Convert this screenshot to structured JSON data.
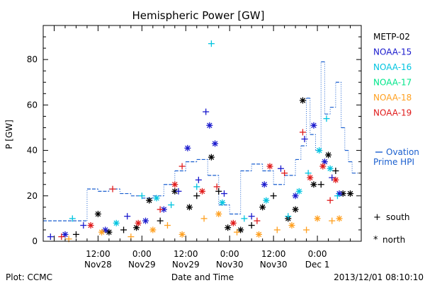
{
  "chart_data": {
    "type": "scatter",
    "title": "Hemispheric Power [GW]",
    "ylabel": "P [GW]",
    "xlabel": "Date and Time",
    "ylim": [
      0,
      95
    ],
    "yticks": [
      0,
      20,
      40,
      60,
      80
    ],
    "xlim": [
      "2013-11-27T21:00",
      "2013-12-01T12:00"
    ],
    "xticks": [
      {
        "at": "2013-11-28T12:00",
        "line1": "12:00",
        "line2": "Nov28"
      },
      {
        "at": "2013-11-29T00:00",
        "line1": "0:00",
        "line2": "Nov29"
      },
      {
        "at": "2013-11-29T12:00",
        "line1": "12:00",
        "line2": "Nov29"
      },
      {
        "at": "2013-11-30T00:00",
        "line1": "0:00",
        "line2": "Nov30"
      },
      {
        "at": "2013-11-30T12:00",
        "line1": "12:00",
        "line2": "Nov30"
      },
      {
        "at": "2013-12-01T00:00",
        "line1": "0:00",
        "line2": "Dec 1"
      }
    ],
    "grid": false,
    "legend_position": "right",
    "marker_legend": {
      "south_symbol": "+",
      "south_label": "south",
      "north_symbol": "*",
      "north_label": "north"
    },
    "series": [
      {
        "name": "METP-02",
        "color": "#000000",
        "points": [
          [
            "2013-11-28T06:00",
            3,
            "s"
          ],
          [
            "2013-11-28T12:00",
            12,
            "n"
          ],
          [
            "2013-11-28T15:00",
            4,
            "n"
          ],
          [
            "2013-11-28T19:00",
            5,
            "s"
          ],
          [
            "2013-11-28T22:30",
            6,
            "n"
          ],
          [
            "2013-11-29T02:00",
            18,
            "n"
          ],
          [
            "2013-11-29T05:00",
            9,
            "s"
          ],
          [
            "2013-11-29T09:00",
            22,
            "n"
          ],
          [
            "2013-11-29T13:00",
            15,
            "n"
          ],
          [
            "2013-11-29T15:00",
            20,
            "s"
          ],
          [
            "2013-11-29T19:00",
            37,
            "n"
          ],
          [
            "2013-11-29T21:00",
            22,
            "s"
          ],
          [
            "2013-11-29T23:30",
            6,
            "n"
          ],
          [
            "2013-11-30T03:00",
            5,
            "n"
          ],
          [
            "2013-11-30T06:00",
            7,
            "s"
          ],
          [
            "2013-11-30T09:00",
            15,
            "n"
          ],
          [
            "2013-11-30T12:00",
            20,
            "s"
          ],
          [
            "2013-11-30T16:00",
            10,
            "n"
          ],
          [
            "2013-11-30T18:00",
            14,
            "n"
          ],
          [
            "2013-11-30T20:00",
            62,
            "n"
          ],
          [
            "2013-11-30T23:00",
            25,
            "n"
          ],
          [
            "2013-12-01T01:00",
            25,
            "s"
          ],
          [
            "2013-12-01T03:00",
            38,
            "n"
          ],
          [
            "2013-12-01T05:00",
            31,
            "s"
          ],
          [
            "2013-12-01T07:00",
            21,
            "n"
          ],
          [
            "2013-12-01T09:00",
            21,
            "n"
          ]
        ]
      },
      {
        "name": "NOAA-15",
        "color": "#1a1acd",
        "points": [
          [
            "2013-11-27T23:00",
            2,
            "s"
          ],
          [
            "2013-11-28T03:00",
            3,
            "n"
          ],
          [
            "2013-11-28T08:00",
            7,
            "s"
          ],
          [
            "2013-11-28T14:00",
            5,
            "n"
          ],
          [
            "2013-11-28T20:00",
            11,
            "s"
          ],
          [
            "2013-11-29T01:00",
            9,
            "n"
          ],
          [
            "2013-11-29T06:00",
            14,
            "n"
          ],
          [
            "2013-11-29T10:00",
            22,
            "s"
          ],
          [
            "2013-11-29T12:30",
            41,
            "n"
          ],
          [
            "2013-11-29T15:30",
            27,
            "s"
          ],
          [
            "2013-11-29T17:30",
            57,
            "s"
          ],
          [
            "2013-11-29T18:30",
            51,
            "n"
          ],
          [
            "2013-11-29T20:00",
            43,
            "n"
          ],
          [
            "2013-11-29T22:30",
            21,
            "s"
          ],
          [
            "2013-11-30T06:00",
            11,
            "s"
          ],
          [
            "2013-11-30T09:30",
            25,
            "n"
          ],
          [
            "2013-11-30T14:00",
            32,
            "s"
          ],
          [
            "2013-11-30T18:00",
            20,
            "n"
          ],
          [
            "2013-11-30T20:30",
            45,
            "s"
          ],
          [
            "2013-11-30T23:00",
            51,
            "n"
          ],
          [
            "2013-12-01T02:00",
            35,
            "n"
          ],
          [
            "2013-12-01T04:00",
            28,
            "s"
          ],
          [
            "2013-12-01T06:00",
            21,
            "n"
          ]
        ]
      },
      {
        "name": "NOAA-16",
        "color": "#00c4e0",
        "points": [
          [
            "2013-11-28T05:00",
            10,
            "s"
          ],
          [
            "2013-11-28T17:00",
            8,
            "n"
          ],
          [
            "2013-11-29T00:00",
            20,
            "s"
          ],
          [
            "2013-11-29T04:00",
            19,
            "n"
          ],
          [
            "2013-11-29T08:00",
            16,
            "s"
          ],
          [
            "2013-11-29T15:00",
            24,
            "s"
          ],
          [
            "2013-11-29T19:00",
            87,
            "s"
          ],
          [
            "2013-11-29T22:00",
            17,
            "n"
          ],
          [
            "2013-11-30T04:00",
            10,
            "s"
          ],
          [
            "2013-11-30T10:00",
            18,
            "n"
          ],
          [
            "2013-11-30T16:00",
            11,
            "s"
          ],
          [
            "2013-11-30T19:00",
            22,
            "n"
          ],
          [
            "2013-11-30T21:30",
            30,
            "s"
          ],
          [
            "2013-12-01T00:30",
            40,
            "n"
          ],
          [
            "2013-12-01T02:30",
            54,
            "s"
          ],
          [
            "2013-12-01T03:30",
            32,
            "n"
          ],
          [
            "2013-12-01T05:30",
            20,
            "s"
          ]
        ]
      },
      {
        "name": "NOAA-17",
        "color": "#00e68a",
        "points": []
      },
      {
        "name": "NOAA-18",
        "color": "#ffa020",
        "points": [
          [
            "2013-11-28T04:00",
            1,
            "s"
          ],
          [
            "2013-11-28T13:00",
            4,
            "n"
          ],
          [
            "2013-11-28T21:00",
            2,
            "s"
          ],
          [
            "2013-11-29T03:00",
            5,
            "n"
          ],
          [
            "2013-11-29T07:00",
            7,
            "s"
          ],
          [
            "2013-11-29T11:00",
            3,
            "n"
          ],
          [
            "2013-11-29T17:00",
            10,
            "s"
          ],
          [
            "2013-11-29T21:00",
            12,
            "n"
          ],
          [
            "2013-11-30T02:00",
            4,
            "s"
          ],
          [
            "2013-11-30T08:00",
            3,
            "n"
          ],
          [
            "2013-11-30T13:00",
            5,
            "s"
          ],
          [
            "2013-11-30T17:00",
            7,
            "n"
          ],
          [
            "2013-11-30T21:00",
            5,
            "s"
          ],
          [
            "2013-12-01T00:00",
            10,
            "n"
          ],
          [
            "2013-12-01T04:00",
            9,
            "s"
          ],
          [
            "2013-12-01T06:00",
            10,
            "n"
          ]
        ]
      },
      {
        "name": "NOAA-19",
        "color": "#e01a1a",
        "points": [
          [
            "2013-11-28T02:00",
            2,
            "s"
          ],
          [
            "2013-11-28T10:00",
            7,
            "n"
          ],
          [
            "2013-11-28T16:00",
            23,
            "s"
          ],
          [
            "2013-11-28T23:00",
            8,
            "n"
          ],
          [
            "2013-11-29T05:00",
            14,
            "s"
          ],
          [
            "2013-11-29T09:00",
            25,
            "n"
          ],
          [
            "2013-11-29T11:00",
            33,
            "s"
          ],
          [
            "2013-11-29T16:30",
            22,
            "n"
          ],
          [
            "2013-11-29T20:30",
            24,
            "s"
          ],
          [
            "2013-11-30T01:00",
            8,
            "n"
          ],
          [
            "2013-11-30T07:30",
            9,
            "s"
          ],
          [
            "2013-11-30T11:00",
            33,
            "n"
          ],
          [
            "2013-11-30T15:00",
            30,
            "s"
          ],
          [
            "2013-11-30T20:00",
            48,
            "s"
          ],
          [
            "2013-11-30T22:00",
            28,
            "n"
          ],
          [
            "2013-12-01T01:30",
            33,
            "n"
          ],
          [
            "2013-12-01T03:30",
            18,
            "s"
          ],
          [
            "2013-12-01T05:00",
            27,
            "n"
          ]
        ]
      }
    ],
    "ovation": {
      "name": "Ovation\nPrime HPI",
      "legend_line1": "Ovation",
      "legend_line2": "Prime HPI",
      "color": "#1a5fcf",
      "steps": [
        [
          "2013-11-27T21:00",
          9
        ],
        [
          "2013-11-28T09:00",
          23
        ],
        [
          "2013-11-28T12:00",
          22
        ],
        [
          "2013-11-28T15:00",
          23
        ],
        [
          "2013-11-28T18:00",
          21
        ],
        [
          "2013-11-28T21:00",
          20
        ],
        [
          "2013-11-29T00:00",
          19
        ],
        [
          "2013-11-29T03:00",
          20
        ],
        [
          "2013-11-29T06:00",
          25
        ],
        [
          "2013-11-29T09:00",
          31
        ],
        [
          "2013-11-29T12:00",
          35
        ],
        [
          "2013-11-29T15:00",
          36
        ],
        [
          "2013-11-29T18:00",
          29
        ],
        [
          "2013-11-29T21:00",
          16
        ],
        [
          "2013-11-30T00:00",
          12
        ],
        [
          "2013-11-30T03:00",
          31
        ],
        [
          "2013-11-30T06:00",
          34
        ],
        [
          "2013-11-30T09:00",
          31
        ],
        [
          "2013-11-30T12:00",
          25
        ],
        [
          "2013-11-30T15:00",
          29
        ],
        [
          "2013-11-30T18:00",
          36
        ],
        [
          "2013-11-30T19:30",
          42
        ],
        [
          "2013-11-30T21:00",
          63
        ],
        [
          "2013-11-30T22:00",
          47
        ],
        [
          "2013-11-30T23:30",
          40
        ],
        [
          "2013-12-01T01:00",
          79
        ],
        [
          "2013-12-01T02:00",
          56
        ],
        [
          "2013-12-01T03:30",
          59
        ],
        [
          "2013-12-01T05:00",
          70
        ],
        [
          "2013-12-01T06:30",
          50
        ],
        [
          "2013-12-01T07:30",
          40
        ],
        [
          "2013-12-01T08:30",
          35
        ],
        [
          "2013-12-01T09:30",
          30
        ]
      ]
    }
  },
  "footer": {
    "plot_credit": "Plot: CCMC",
    "timestamp": "2013/12/01 08:10:10"
  }
}
